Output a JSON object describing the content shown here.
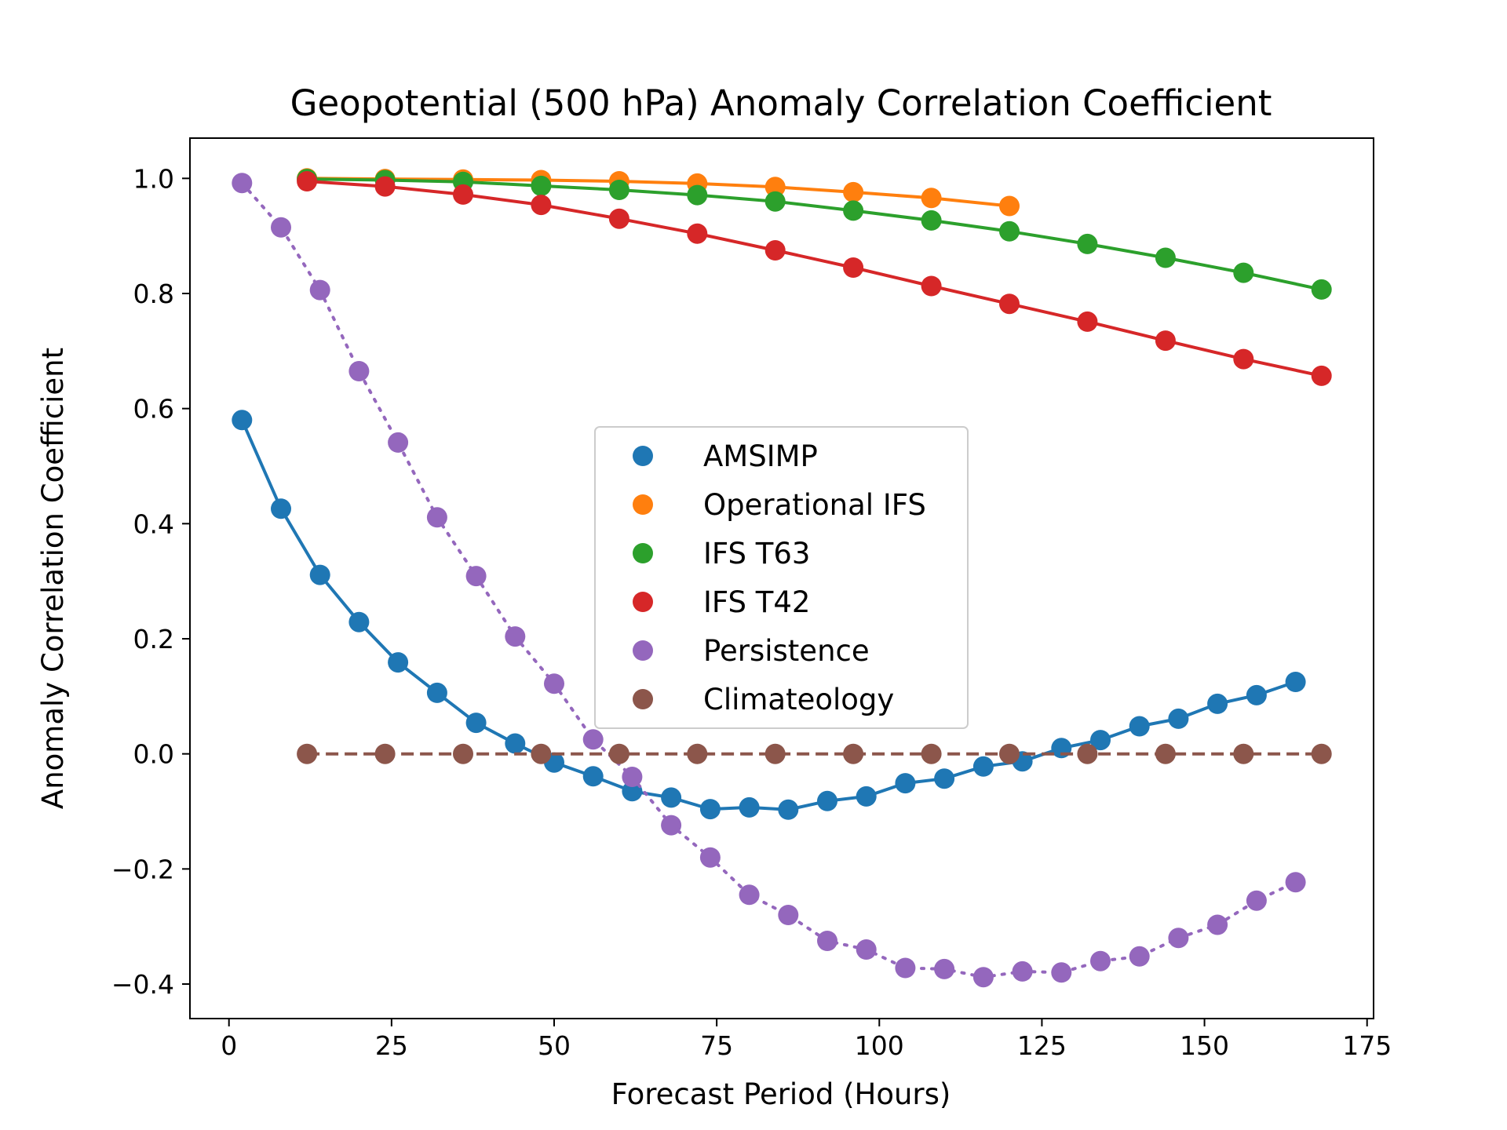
{
  "chart_data": {
    "type": "line",
    "title": "Geopotential (500 hPa) Anomaly Correlation Coefficient",
    "xlabel": "Forecast Period (Hours)",
    "ylabel": "Anomaly Correlation Coefficient",
    "xlim": [
      -6,
      176
    ],
    "ylim": [
      -0.46,
      1.07
    ],
    "xticks": [
      0,
      25,
      50,
      75,
      100,
      125,
      150,
      175
    ],
    "xtick_labels": [
      "0",
      "25",
      "50",
      "75",
      "100",
      "125",
      "150",
      "175"
    ],
    "yticks": [
      -0.4,
      -0.2,
      0.0,
      0.2,
      0.4,
      0.6,
      0.8,
      1.0
    ],
    "ytick_labels": [
      "−0.4",
      "−0.2",
      "0.0",
      "0.2",
      "0.4",
      "0.6",
      "0.8",
      "1.0"
    ],
    "grid": false,
    "legend_position": "center",
    "series": [
      {
        "name": "AMSIMP",
        "color": "#1f77b4",
        "line_style": "solid",
        "x": [
          2,
          8,
          14,
          20,
          26,
          32,
          38,
          44,
          50,
          56,
          62,
          68,
          74,
          80,
          86,
          92,
          98,
          104,
          110,
          116,
          122,
          128,
          134,
          140,
          146,
          152,
          158,
          164
        ],
        "y": [
          0.58,
          0.426,
          0.311,
          0.229,
          0.159,
          0.106,
          0.054,
          0.018,
          -0.015,
          -0.039,
          -0.065,
          -0.076,
          -0.096,
          -0.093,
          -0.097,
          -0.082,
          -0.074,
          -0.051,
          -0.043,
          -0.022,
          -0.013,
          0.01,
          0.024,
          0.048,
          0.061,
          0.087,
          0.102,
          0.125
        ]
      },
      {
        "name": "Operational IFS",
        "color": "#ff7f0e",
        "line_style": "solid",
        "x": [
          12,
          24,
          36,
          48,
          60,
          72,
          84,
          96,
          108,
          120
        ],
        "y": [
          1.0,
          0.999,
          0.998,
          0.997,
          0.995,
          0.991,
          0.985,
          0.976,
          0.966,
          0.952
        ]
      },
      {
        "name": "IFS T63",
        "color": "#2ca02c",
        "line_style": "solid",
        "x": [
          12,
          24,
          36,
          48,
          60,
          72,
          84,
          96,
          108,
          120,
          132,
          144,
          156,
          168
        ],
        "y": [
          0.999,
          0.997,
          0.994,
          0.987,
          0.98,
          0.971,
          0.96,
          0.944,
          0.927,
          0.908,
          0.886,
          0.862,
          0.836,
          0.807
        ]
      },
      {
        "name": "IFS T42",
        "color": "#d62728",
        "line_style": "solid",
        "x": [
          12,
          24,
          36,
          48,
          60,
          72,
          84,
          96,
          108,
          120,
          132,
          144,
          156,
          168
        ],
        "y": [
          0.995,
          0.986,
          0.972,
          0.954,
          0.93,
          0.904,
          0.875,
          0.845,
          0.813,
          0.782,
          0.751,
          0.718,
          0.686,
          0.657
        ]
      },
      {
        "name": "Persistence",
        "color": "#9467bd",
        "line_style": "dotted",
        "x": [
          2,
          8,
          14,
          20,
          26,
          32,
          38,
          44,
          50,
          56,
          62,
          68,
          74,
          80,
          86,
          92,
          98,
          104,
          110,
          116,
          122,
          128,
          134,
          140,
          146,
          152,
          158,
          164
        ],
        "y": [
          0.992,
          0.915,
          0.806,
          0.665,
          0.541,
          0.411,
          0.309,
          0.204,
          0.122,
          0.025,
          -0.04,
          -0.124,
          -0.18,
          -0.245,
          -0.28,
          -0.325,
          -0.34,
          -0.372,
          -0.374,
          -0.388,
          -0.378,
          -0.38,
          -0.36,
          -0.352,
          -0.32,
          -0.297,
          -0.255,
          -0.223
        ]
      },
      {
        "name": "Climateology",
        "color": "#8c564b",
        "line_style": "dashed",
        "x": [
          12,
          24,
          36,
          48,
          60,
          72,
          84,
          96,
          108,
          120,
          132,
          144,
          156,
          168
        ],
        "y": [
          0,
          0,
          0,
          0,
          0,
          0,
          0,
          0,
          0,
          0,
          0,
          0,
          0,
          0
        ]
      }
    ]
  }
}
